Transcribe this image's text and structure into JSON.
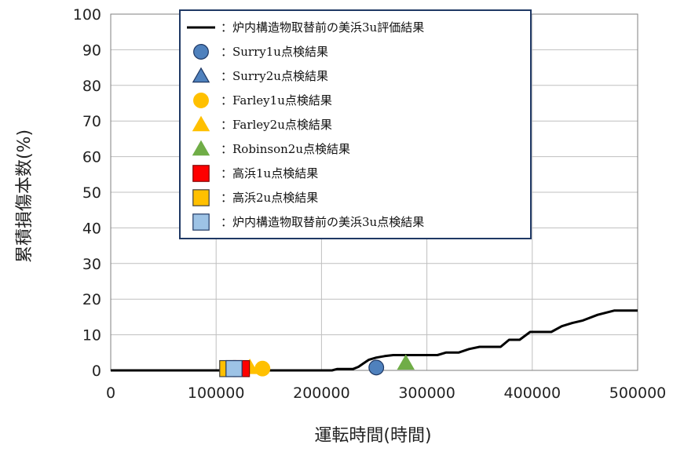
{
  "chart_data": {
    "type": "line",
    "xlabel": "運転時間(時間)",
    "ylabel": "累積損傷本数(%)",
    "xlim": [
      0,
      500000
    ],
    "ylim": [
      0,
      100
    ],
    "xticks": [
      0,
      100000,
      200000,
      300000,
      400000,
      500000
    ],
    "yticks": [
      0,
      10,
      20,
      30,
      40,
      50,
      60,
      70,
      80,
      90,
      100
    ],
    "grid": true,
    "legend_position": "top-center",
    "series": [
      {
        "name": "：炉内構造物取替前の美浜3u評価結果",
        "kind": "line",
        "color": "#000000",
        "points": [
          [
            0,
            0
          ],
          [
            210000,
            0
          ],
          [
            215000,
            0.4
          ],
          [
            230000,
            0.4
          ],
          [
            235000,
            1.0
          ],
          [
            240000,
            2.0
          ],
          [
            245000,
            3.0
          ],
          [
            252000,
            3.6
          ],
          [
            260000,
            4.0
          ],
          [
            268000,
            4.3
          ],
          [
            290000,
            4.3
          ],
          [
            310000,
            4.3
          ],
          [
            318000,
            5.0
          ],
          [
            330000,
            5.0
          ],
          [
            340000,
            6.0
          ],
          [
            350000,
            6.6
          ],
          [
            370000,
            6.6
          ],
          [
            378000,
            8.6
          ],
          [
            388000,
            8.6
          ],
          [
            398000,
            10.8
          ],
          [
            418000,
            10.8
          ],
          [
            428000,
            12.4
          ],
          [
            438000,
            13.3
          ],
          [
            448000,
            14.0
          ],
          [
            462000,
            15.6
          ],
          [
            478000,
            16.8
          ],
          [
            500000,
            16.8
          ]
        ]
      },
      {
        "name": "：Surry1u点検結果",
        "kind": "scatter",
        "marker": "circle",
        "color": "#4f81bd",
        "stroke": "#1f3864",
        "points": [
          [
            252000,
            0.8
          ]
        ]
      },
      {
        "name": "：Surry2u点検結果",
        "kind": "scatter",
        "marker": "triangle",
        "color": "#4f81bd",
        "stroke": "#1f3864",
        "points": []
      },
      {
        "name": "：Farley1u点検結果",
        "kind": "scatter",
        "marker": "circle",
        "color": "#ffc000",
        "stroke": "#ffc000",
        "points": [
          [
            144000,
            0.5
          ]
        ]
      },
      {
        "name": "：Farley2u点検結果",
        "kind": "scatter",
        "marker": "triangle",
        "color": "#ffc000",
        "stroke": "#ffc000",
        "points": [
          [
            132000,
            0.8
          ]
        ]
      },
      {
        "name": "：Robinson2u点検結果",
        "kind": "scatter",
        "marker": "triangle",
        "color": "#70ad47",
        "stroke": "#70ad47",
        "points": [
          [
            280000,
            2.0
          ]
        ]
      },
      {
        "name": "：高浜1u点検結果",
        "kind": "scatter",
        "marker": "square",
        "color": "#ff0000",
        "stroke": "#7f0000",
        "points": [
          [
            124000,
            0.5
          ]
        ]
      },
      {
        "name": "：高浜2u点検結果",
        "kind": "scatter",
        "marker": "square",
        "color": "#ffc000",
        "stroke": "#404040",
        "points": [
          [
            111000,
            0.5
          ]
        ]
      },
      {
        "name": "：炉内構造物取替前の美浜3u点検結果",
        "kind": "scatter",
        "marker": "square",
        "color": "#9dc3e6",
        "stroke": "#1f3864",
        "points": [
          [
            117000,
            0.5
          ]
        ]
      }
    ]
  }
}
